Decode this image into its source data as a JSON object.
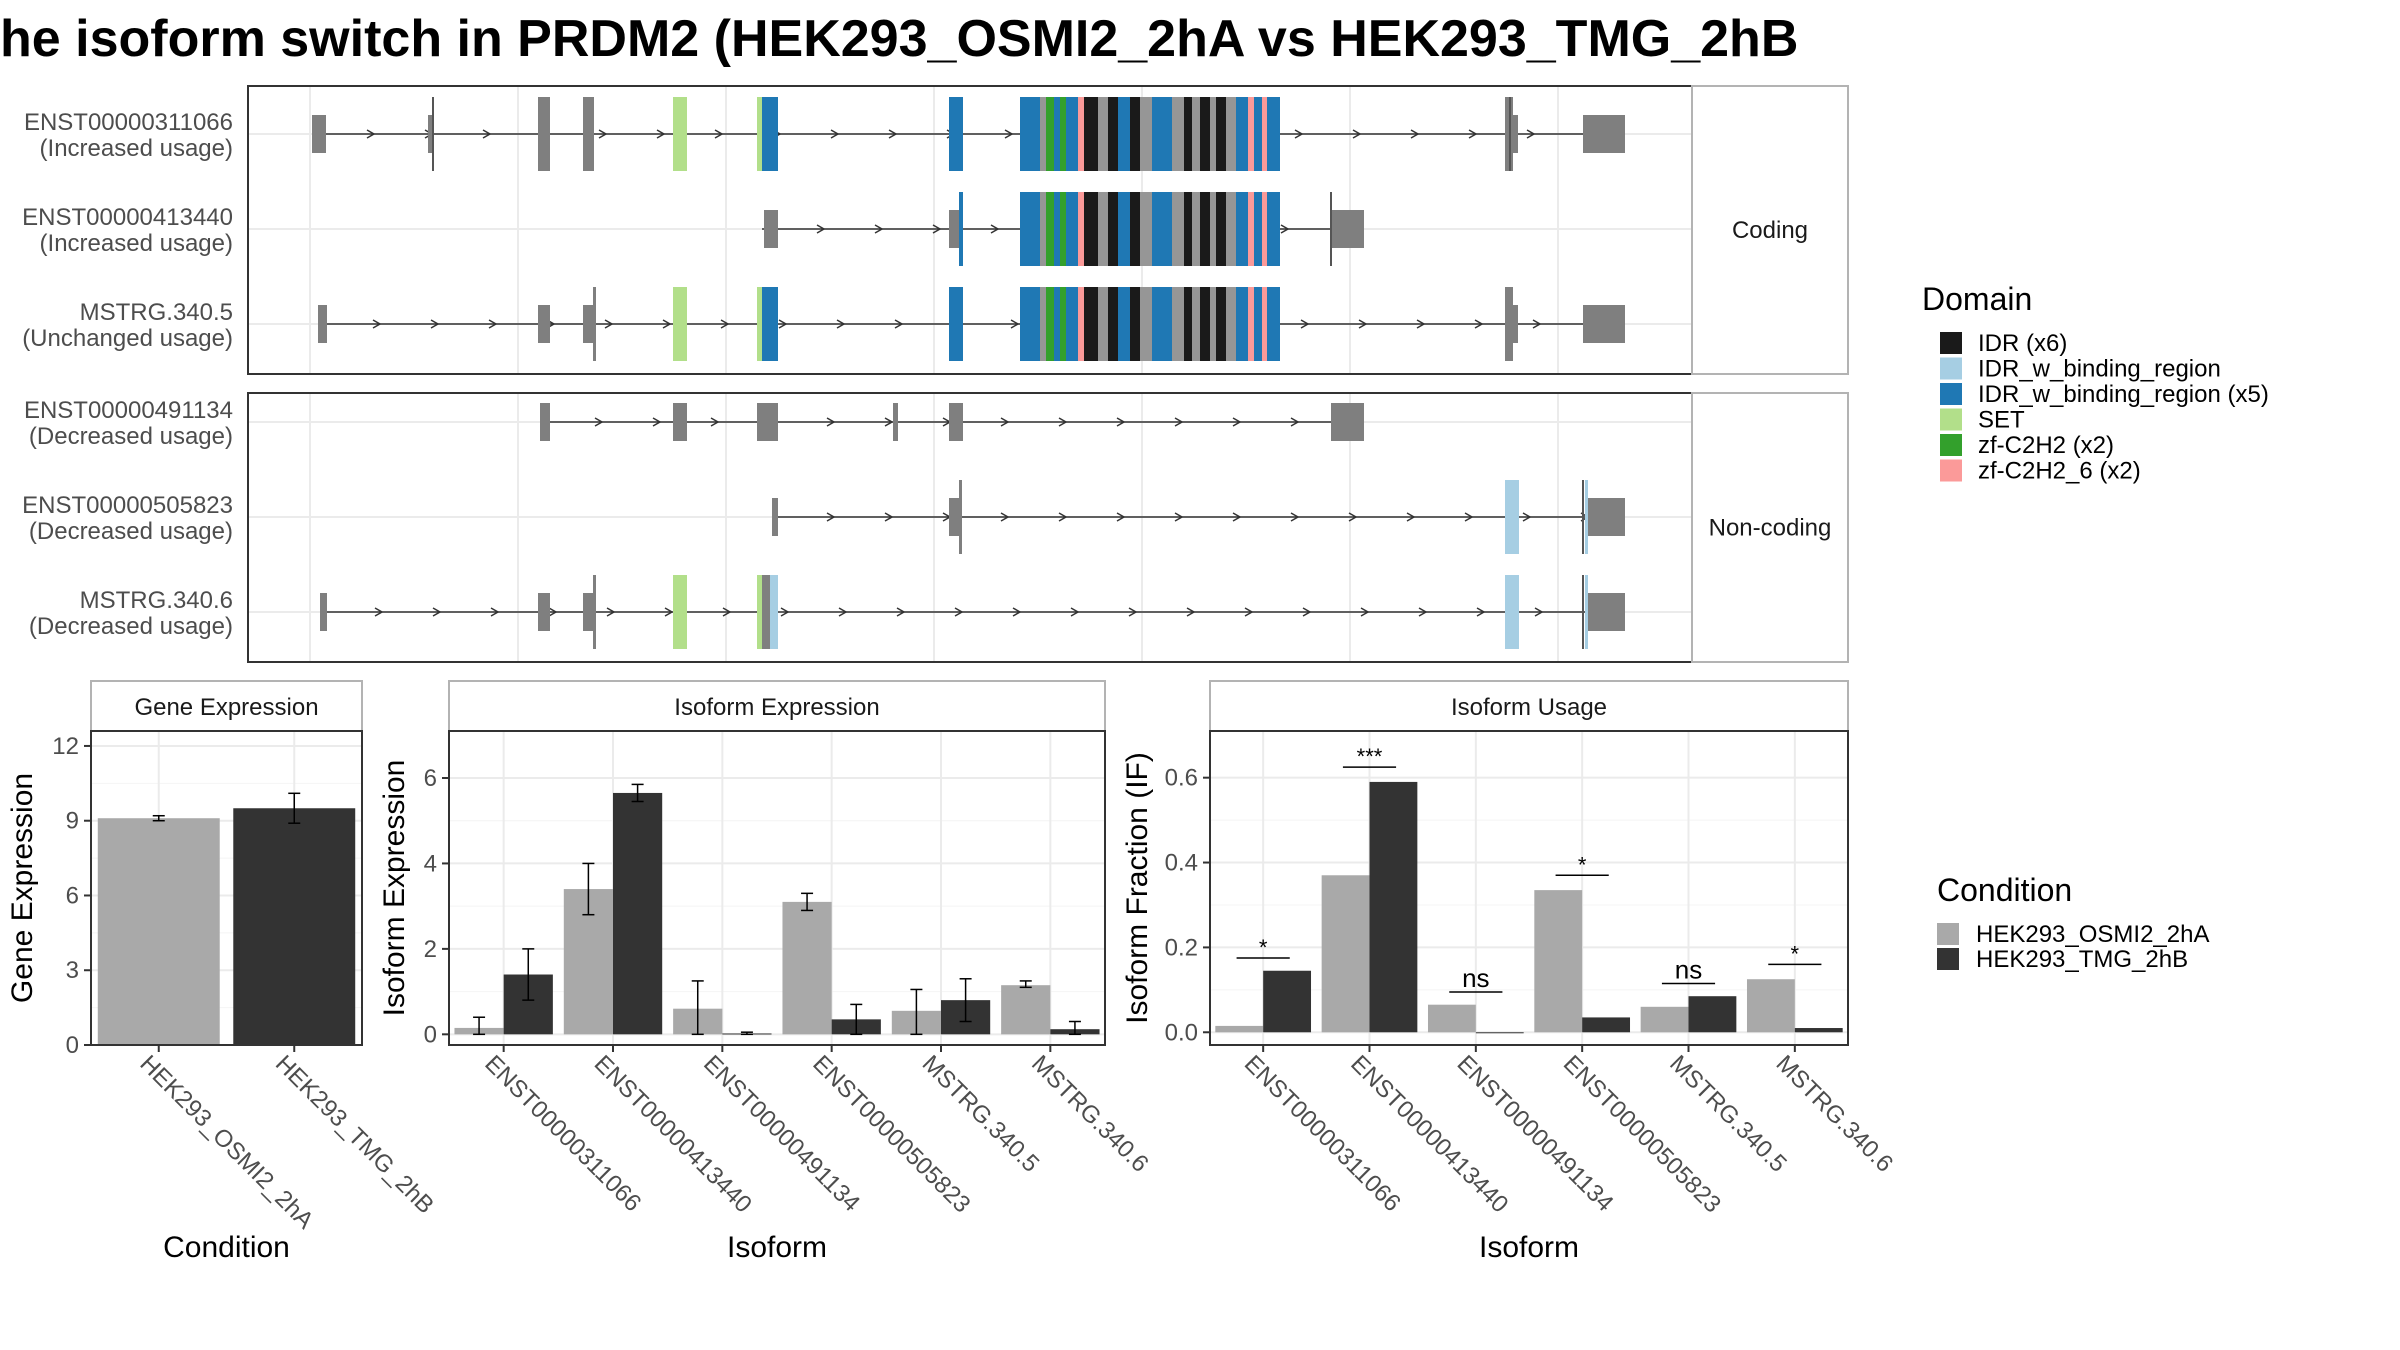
{
  "title": "he isoform switch in PRDM2 (HEK293_OSMI2_2hA vs HEK293_TMG_2hB",
  "colors": {
    "IDR": "#1a1a1a",
    "IDR_w_binding_region": "#a6cee3",
    "IDR_w_binding_region_x5": "#1f78b4",
    "SET": "#b2df8a",
    "zf_C2H2": "#33a02c",
    "zf_C2H2_6": "#fb9a99",
    "exon": "#7f7f7f",
    "stripe": "#969696",
    "cond_a": "#a9a9a9",
    "cond_b": "#333333"
  },
  "structure_panel": {
    "strips": [
      "Coding",
      "Non-coding"
    ],
    "isoforms": [
      {
        "id": "ENST00000311066",
        "usage": "(Increased usage)",
        "group": "Coding"
      },
      {
        "id": "ENST00000413440",
        "usage": "(Increased usage)",
        "group": "Coding"
      },
      {
        "id": "MSTRG.340.5",
        "usage": "(Unchanged usage)",
        "group": "Coding"
      },
      {
        "id": "ENST00000491134",
        "usage": "(Decreased usage)",
        "group": "Non-coding"
      },
      {
        "id": "ENST00000505823",
        "usage": "(Decreased usage)",
        "group": "Non-coding"
      },
      {
        "id": "MSTRG.340.6",
        "usage": "(Decreased usage)",
        "group": "Non-coding"
      }
    ]
  },
  "legend_domain": {
    "title": "Domain",
    "items": [
      {
        "label": "IDR (x6)",
        "color_key": "IDR"
      },
      {
        "label": "IDR_w_binding_region",
        "color_key": "IDR_w_binding_region"
      },
      {
        "label": "IDR_w_binding_region (x5)",
        "color_key": "IDR_w_binding_region_x5"
      },
      {
        "label": "SET",
        "color_key": "SET"
      },
      {
        "label": "zf-C2H2 (x2)",
        "color_key": "zf_C2H2"
      },
      {
        "label": "zf-C2H2_6 (x2)",
        "color_key": "zf_C2H2_6"
      }
    ]
  },
  "legend_condition": {
    "title": "Condition",
    "items": [
      {
        "label": "HEK293_OSMI2_2hA",
        "color_key": "cond_a"
      },
      {
        "label": "HEK293_TMG_2hB",
        "color_key": "cond_b"
      }
    ]
  },
  "chart_data": [
    {
      "type": "bar",
      "panel": "Gene Expression",
      "xlabel": "Condition",
      "ylabel": "Gene Expression",
      "ylim": [
        0,
        12.6
      ],
      "yticks": [
        0,
        3,
        6,
        9,
        12
      ],
      "categories": [
        "HEK293_OSMI2_2hA",
        "HEK293_TMG_2hB"
      ],
      "values": [
        9.1,
        9.5
      ],
      "err_low": [
        9.0,
        8.9
      ],
      "err_high": [
        9.2,
        10.1
      ]
    },
    {
      "type": "bar",
      "panel": "Isoform Expression",
      "xlabel": "Isoform",
      "ylabel": "Isoform Expression",
      "ylim": [
        -0.25,
        7.1
      ],
      "yticks": [
        0,
        2,
        4,
        6
      ],
      "categories": [
        "ENST00000311066",
        "ENST00000413440",
        "ENST00000491134",
        "ENST00000505823",
        "MSTRG.340.5",
        "MSTRG.340.6"
      ],
      "series": [
        {
          "name": "HEK293_OSMI2_2hA",
          "values": [
            0.15,
            3.4,
            0.6,
            3.1,
            0.55,
            1.15
          ],
          "err_low": [
            0.0,
            2.8,
            0.0,
            2.9,
            0.0,
            1.1
          ],
          "err_high": [
            0.4,
            4.0,
            1.25,
            3.3,
            1.05,
            1.25
          ]
        },
        {
          "name": "HEK293_TMG_2hB",
          "values": [
            1.4,
            5.65,
            0.02,
            0.35,
            0.8,
            0.12
          ],
          "err_low": [
            0.8,
            5.45,
            0.0,
            0.0,
            0.3,
            0.0
          ],
          "err_high": [
            2.0,
            5.85,
            0.05,
            0.7,
            1.3,
            0.3
          ]
        }
      ]
    },
    {
      "type": "bar",
      "panel": "Isoform Usage",
      "xlabel": "Isoform",
      "ylabel": "Isoform Fraction (IF)",
      "ylim": [
        -0.03,
        0.71
      ],
      "yticks": [
        0.0,
        0.2,
        0.4,
        0.6
      ],
      "ytick_labels": [
        "0.0",
        "0.2",
        "0.4",
        "0.6"
      ],
      "categories": [
        "ENST00000311066",
        "ENST00000413440",
        "ENST00000491134",
        "ENST00000505823",
        "MSTRG.340.5",
        "MSTRG.340.6"
      ],
      "series": [
        {
          "name": "HEK293_OSMI2_2hA",
          "values": [
            0.015,
            0.37,
            0.065,
            0.335,
            0.06,
            0.125
          ]
        },
        {
          "name": "HEK293_TMG_2hB",
          "values": [
            0.145,
            0.59,
            0.0,
            0.035,
            0.085,
            0.01
          ]
        }
      ],
      "significance": [
        "*",
        "***",
        "ns",
        "*",
        "ns",
        "*"
      ],
      "sig_level": [
        0.175,
        0.625,
        0.095,
        0.37,
        0.115,
        0.16
      ]
    }
  ]
}
